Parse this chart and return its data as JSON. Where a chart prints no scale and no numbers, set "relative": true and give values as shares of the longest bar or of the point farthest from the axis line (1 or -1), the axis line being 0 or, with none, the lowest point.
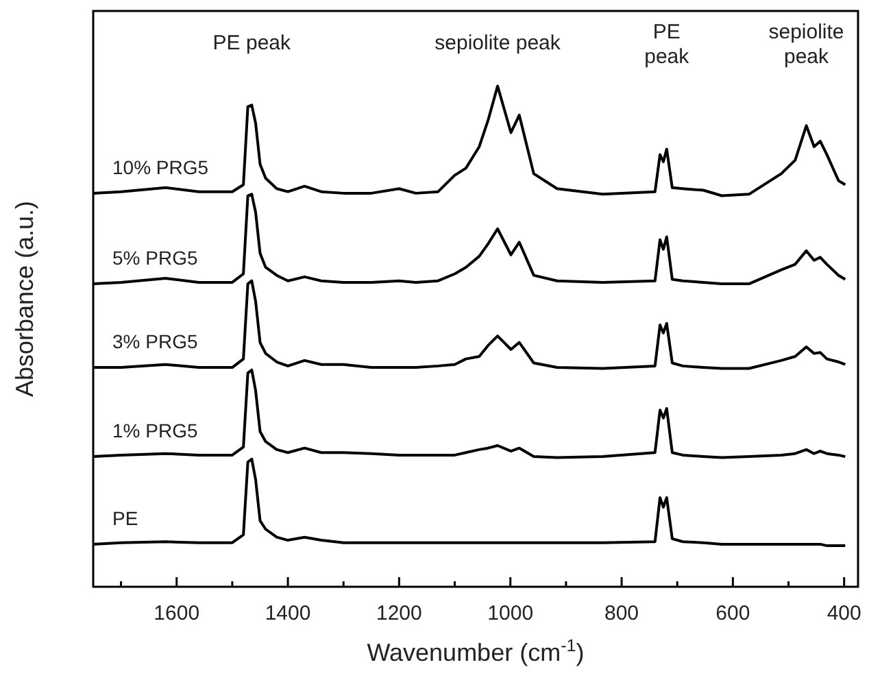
{
  "chart_data": {
    "type": "line",
    "relative": true,
    "xlabel": "Wavenumber (cm$^{-1}$)",
    "ylabel": "Absorbance (a.u.)",
    "xlim": [
      1750,
      375
    ],
    "xticks": [
      {
        "value": 1700,
        "label": null
      },
      1600,
      {
        "value": 1500,
        "label": null
      },
      1400,
      {
        "value": 1300,
        "label": null
      },
      1200,
      {
        "value": 1100,
        "label": null
      },
      1000,
      {
        "value": 900,
        "label": null
      },
      800,
      {
        "value": 700,
        "label": null
      },
      600,
      {
        "value": 500,
        "label": null
      },
      400
    ],
    "x": [
      1750,
      1700,
      1620,
      1560,
      1500,
      1480,
      1472,
      1465,
      1458,
      1450,
      1440,
      1420,
      1400,
      1370,
      1340,
      1300,
      1250,
      1200,
      1170,
      1130,
      1100,
      1080,
      1056,
      1040,
      1023,
      999,
      984,
      958,
      916,
      834,
      740,
      731,
      725,
      719,
      709,
      690,
      653,
      620,
      571,
      513,
      488,
      468,
      454,
      443,
      431,
      410,
      398
    ],
    "legend": false,
    "grid": false,
    "marker": "none",
    "line_style": "solid",
    "series": [
      {
        "name": "10% PRG5",
        "color": "#000000",
        "values": [
          0.786,
          0.789,
          0.797,
          0.789,
          0.789,
          0.803,
          0.959,
          0.962,
          0.926,
          0.844,
          0.816,
          0.795,
          0.789,
          0.8,
          0.789,
          0.786,
          0.786,
          0.795,
          0.786,
          0.789,
          0.822,
          0.836,
          0.879,
          0.932,
          1,
          0.907,
          0.942,
          0.825,
          0.795,
          0.784,
          0.789,
          0.863,
          0.849,
          0.874,
          0.797,
          0.795,
          0.792,
          0.781,
          0.784,
          0.825,
          0.852,
          0.921,
          0.879,
          0.89,
          0.863,
          0.811,
          0.803
        ]
      },
      {
        "name": "5% PRG5",
        "color": "#000000",
        "values": [
          0.605,
          0.608,
          0.616,
          0.608,
          0.608,
          0.625,
          0.781,
          0.784,
          0.748,
          0.666,
          0.638,
          0.622,
          0.611,
          0.619,
          0.611,
          0.608,
          0.608,
          0.611,
          0.608,
          0.611,
          0.625,
          0.638,
          0.66,
          0.685,
          0.715,
          0.663,
          0.688,
          0.622,
          0.611,
          0.608,
          0.611,
          0.693,
          0.674,
          0.699,
          0.614,
          0.611,
          0.608,
          0.605,
          0.605,
          0.633,
          0.644,
          0.671,
          0.652,
          0.658,
          0.644,
          0.622,
          0.614
        ]
      },
      {
        "name": "3% PRG5",
        "color": "#000000",
        "values": [
          0.438,
          0.438,
          0.444,
          0.438,
          0.438,
          0.455,
          0.605,
          0.611,
          0.57,
          0.488,
          0.466,
          0.449,
          0.441,
          0.452,
          0.444,
          0.444,
          0.438,
          0.438,
          0.438,
          0.441,
          0.444,
          0.455,
          0.46,
          0.482,
          0.501,
          0.474,
          0.488,
          0.447,
          0.438,
          0.436,
          0.441,
          0.523,
          0.507,
          0.526,
          0.447,
          0.441,
          0.438,
          0.436,
          0.436,
          0.452,
          0.46,
          0.479,
          0.466,
          0.468,
          0.455,
          0.449,
          0.444
        ]
      },
      {
        "name": "1% PRG5",
        "color": "#000000",
        "values": [
          0.26,
          0.263,
          0.266,
          0.263,
          0.263,
          0.279,
          0.427,
          0.433,
          0.392,
          0.31,
          0.29,
          0.274,
          0.268,
          0.277,
          0.268,
          0.268,
          0.266,
          0.263,
          0.263,
          0.263,
          0.263,
          0.268,
          0.274,
          0.277,
          0.282,
          0.271,
          0.277,
          0.26,
          0.258,
          0.26,
          0.268,
          0.353,
          0.337,
          0.356,
          0.268,
          0.263,
          0.26,
          0.258,
          0.26,
          0.263,
          0.266,
          0.274,
          0.266,
          0.271,
          0.266,
          0.263,
          0.26
        ]
      },
      {
        "name": "PE",
        "color": "#000000",
        "values": [
          0.085,
          0.088,
          0.09,
          0.088,
          0.088,
          0.104,
          0.249,
          0.255,
          0.214,
          0.132,
          0.115,
          0.099,
          0.093,
          0.099,
          0.093,
          0.088,
          0.088,
          0.088,
          0.088,
          0.088,
          0.088,
          0.088,
          0.088,
          0.088,
          0.088,
          0.088,
          0.088,
          0.088,
          0.088,
          0.088,
          0.09,
          0.178,
          0.159,
          0.178,
          0.096,
          0.09,
          0.088,
          0.085,
          0.085,
          0.085,
          0.085,
          0.085,
          0.085,
          0.085,
          0.082,
          0.082,
          0.082
        ]
      }
    ],
    "annotations": [
      "PE peak",
      "sepiolite peak",
      "PE\npeak",
      "sepiolite\npeak"
    ]
  }
}
